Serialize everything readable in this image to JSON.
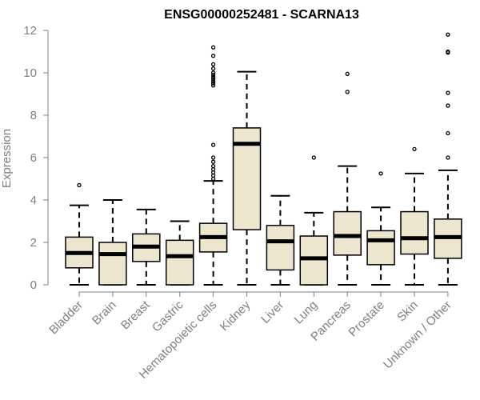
{
  "chart_data": {
    "type": "boxplot",
    "title": "ENSG00000252481 - SCARNA13",
    "ylabel": "Expression",
    "xlabel": "",
    "ylim": [
      0,
      12
    ],
    "yticks": [
      0,
      2,
      4,
      6,
      8,
      10,
      12
    ],
    "colors": {
      "box_fill": "#ede6cf",
      "box_stroke": "#000000",
      "median": "#000000",
      "axis": "#7f7f7f",
      "text": "#7f7f7f"
    },
    "categories": [
      "Bladder",
      "Brain",
      "Breast",
      "Gastric",
      "Hematopoietic cells",
      "Kidney",
      "Liver",
      "Lung",
      "Pancreas",
      "Prostate",
      "Skin",
      "Unknown / Other"
    ],
    "boxes": [
      {
        "name": "Bladder",
        "whisker_low": 0,
        "q1": 0.8,
        "median": 1.5,
        "q3": 2.25,
        "whisker_high": 3.75,
        "outliers": [
          4.7
        ]
      },
      {
        "name": "Brain",
        "whisker_low": 0,
        "q1": 0,
        "median": 1.45,
        "q3": 2.0,
        "whisker_high": 4.0,
        "outliers": []
      },
      {
        "name": "Breast",
        "whisker_low": 0,
        "q1": 1.1,
        "median": 1.8,
        "q3": 2.4,
        "whisker_high": 3.55,
        "outliers": []
      },
      {
        "name": "Gastric",
        "whisker_low": 0,
        "q1": 0,
        "median": 1.35,
        "q3": 2.1,
        "whisker_high": 3.0,
        "outliers": []
      },
      {
        "name": "Hematopoietic cells",
        "whisker_low": 0,
        "q1": 1.55,
        "median": 2.25,
        "q3": 2.9,
        "whisker_high": 4.9,
        "outliers": [
          5.0,
          5.15,
          5.3,
          5.45,
          5.6,
          5.8,
          6.0,
          6.6,
          9.4,
          9.5,
          9.6,
          9.7,
          9.8,
          9.9,
          10.0,
          10.2,
          10.4,
          10.8,
          11.2
        ]
      },
      {
        "name": "Kidney",
        "whisker_low": 0,
        "q1": 2.6,
        "median": 6.65,
        "q3": 7.4,
        "whisker_high": 10.05,
        "outliers": []
      },
      {
        "name": "Liver",
        "whisker_low": 0,
        "q1": 0.7,
        "median": 2.05,
        "q3": 2.8,
        "whisker_high": 4.2,
        "outliers": []
      },
      {
        "name": "Lung",
        "whisker_low": 0,
        "q1": 0,
        "median": 1.25,
        "q3": 2.3,
        "whisker_high": 3.4,
        "outliers": [
          6.0
        ]
      },
      {
        "name": "Pancreas",
        "whisker_low": 0,
        "q1": 1.4,
        "median": 2.3,
        "q3": 3.45,
        "whisker_high": 5.6,
        "outliers": [
          9.1,
          9.95
        ]
      },
      {
        "name": "Prostate",
        "whisker_low": 0,
        "q1": 0.95,
        "median": 2.1,
        "q3": 2.55,
        "whisker_high": 3.65,
        "outliers": [
          5.25
        ]
      },
      {
        "name": "Skin",
        "whisker_low": 0,
        "q1": 1.45,
        "median": 2.2,
        "q3": 3.45,
        "whisker_high": 5.25,
        "outliers": [
          6.4
        ]
      },
      {
        "name": "Unknown / Other",
        "whisker_low": 0,
        "q1": 1.25,
        "median": 2.25,
        "q3": 3.1,
        "whisker_high": 5.4,
        "outliers": [
          6.0,
          7.15,
          8.45,
          9.05,
          10.95,
          11.0,
          11.8
        ]
      }
    ]
  }
}
